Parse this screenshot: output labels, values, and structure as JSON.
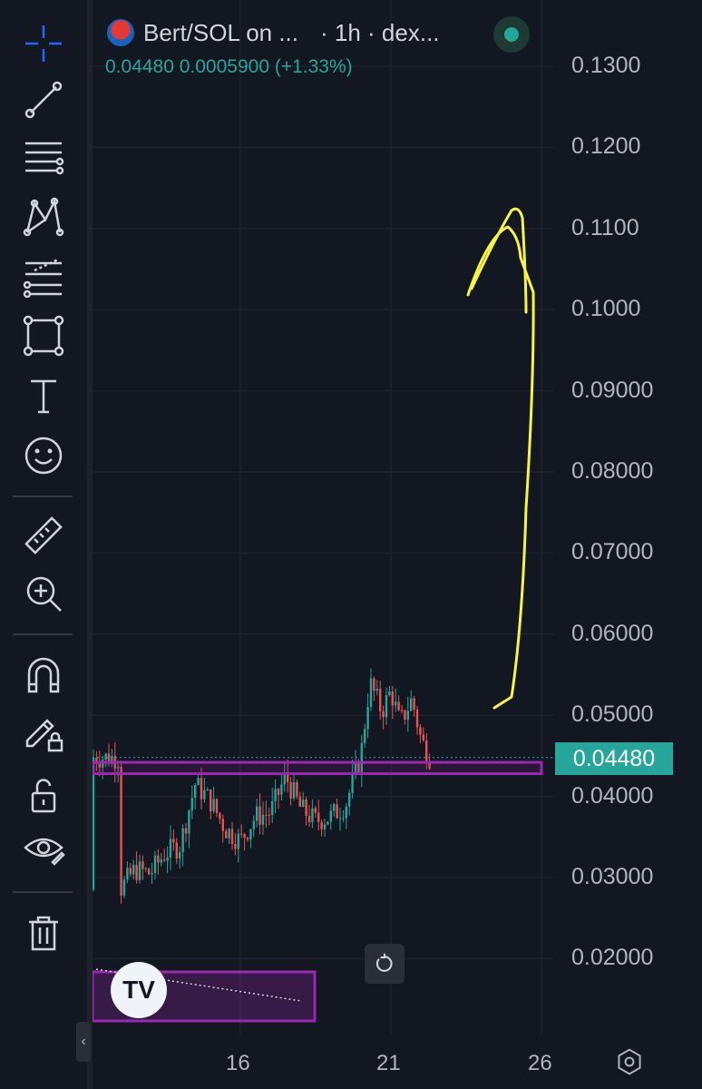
{
  "header": {
    "symbol": "Bert/SOL on ...",
    "interval_source": "· 1h · dex...",
    "ohlc_line": "0.04480  0.0005900  (+1.33%)",
    "status": "live"
  },
  "price_axis": {
    "ticks": [
      "0.1300",
      "0.1200",
      "0.1100",
      "0.1000",
      "0.09000",
      "0.08000",
      "0.07000",
      "0.06000",
      "0.05000",
      "0.04000",
      "0.03000",
      "0.02000"
    ],
    "last_price": "0.04480"
  },
  "time_axis": {
    "ticks": [
      "16",
      "21",
      "26"
    ]
  },
  "toolbar": {
    "tools": [
      "crosshair-icon",
      "trend-line-icon",
      "fib-retracement-icon",
      "xabcd-pattern-icon",
      "forecast-icon",
      "rectangle-icon",
      "text-icon",
      "emoji-icon",
      "ruler-icon",
      "zoom-in-icon",
      "magnet-icon",
      "lock-drawings-icon",
      "unlock-icon",
      "visibility-icon",
      "trash-icon"
    ]
  },
  "colors": {
    "background": "#131722",
    "up": "#26a69a",
    "down": "#ef5350",
    "zone": "#9c27b0",
    "annotation": "#f5f542"
  },
  "logo": "TV",
  "chart_data": {
    "type": "candlestick",
    "symbol": "Bert/SOL",
    "interval": "1h",
    "last_price": 0.0448,
    "change": 0.00059,
    "change_pct": 1.33,
    "ylim": [
      0.015,
      0.135
    ],
    "x_ticks": [
      "16",
      "21",
      "26"
    ],
    "trend_close": [
      [
        "12",
        0.0285
      ],
      [
        "12.5",
        0.031
      ],
      [
        "13",
        0.0305
      ],
      [
        "13.5",
        0.033
      ],
      [
        "14",
        0.034
      ],
      [
        "14.5",
        0.0415
      ],
      [
        "15",
        0.0395
      ],
      [
        "15.5",
        0.036
      ],
      [
        "16",
        0.0345
      ],
      [
        "16.5",
        0.0375
      ],
      [
        "17",
        0.038
      ],
      [
        "17.5",
        0.0425
      ],
      [
        "18",
        0.0385
      ],
      [
        "18.5",
        0.037
      ],
      [
        "19",
        0.0375
      ],
      [
        "19.5",
        0.039
      ],
      [
        "20",
        0.045
      ],
      [
        "20.3",
        0.054
      ],
      [
        "20.7",
        0.0505
      ],
      [
        "21",
        0.053
      ],
      [
        "21.3",
        0.049
      ],
      [
        "21.7",
        0.052
      ],
      [
        "22",
        0.047
      ],
      [
        "22.3",
        0.0448
      ]
    ],
    "support_zone": [
      0.0428,
      0.0442
    ]
  }
}
